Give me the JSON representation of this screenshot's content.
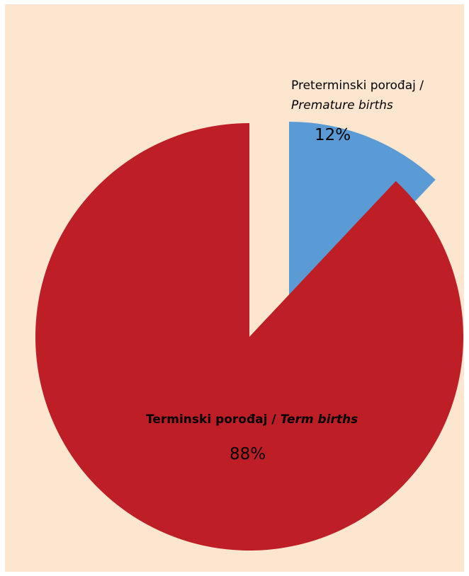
{
  "chart_data": {
    "type": "pie",
    "title": "",
    "exploded": true,
    "slices": [
      {
        "label_local": "Preterminski porođaj /",
        "label_en": "Premature births",
        "value": 12,
        "value_label": "12%",
        "color": "#5b9bd5"
      },
      {
        "label_local": "Terminski porođaj /",
        "label_en": "Term births",
        "value": 88,
        "value_label": "88%",
        "color": "#be1e25"
      }
    ],
    "background_color": "#fde6cf"
  }
}
